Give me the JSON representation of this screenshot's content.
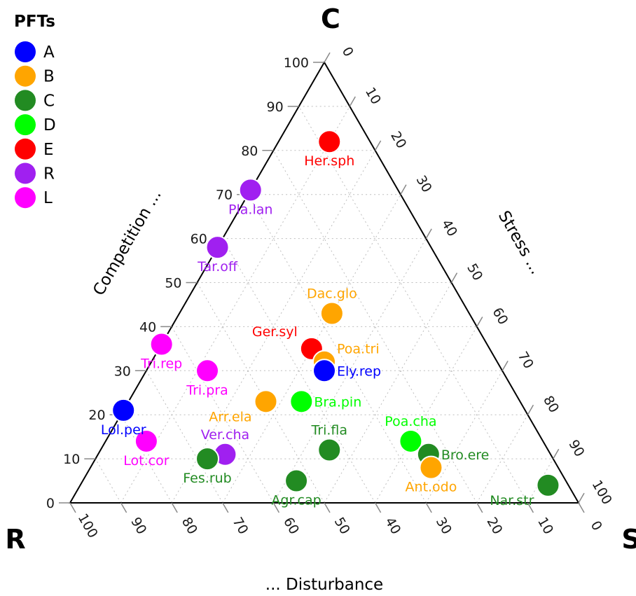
{
  "chart_data": {
    "type": "scatter",
    "subtype": "ternary",
    "corners": {
      "top": "C",
      "left": "R",
      "right": "S"
    },
    "axis_titles": {
      "competition": "Competition ...",
      "stress": "Stress ...",
      "disturbance": "... Disturbance"
    },
    "ticks": {
      "competition": [
        "0",
        "10",
        "20",
        "30",
        "40",
        "50",
        "60",
        "70",
        "80",
        "90",
        "100"
      ],
      "stress": [
        "0",
        "10",
        "20",
        "30",
        "40",
        "50",
        "60",
        "70",
        "80",
        "90",
        "100"
      ],
      "disturbance": [
        "100",
        "90",
        "80",
        "70",
        "60",
        "50",
        "40",
        "30",
        "20",
        "10",
        "0"
      ]
    },
    "grid": true,
    "legend": {
      "title": "PFTs",
      "placement": "top-left",
      "items": [
        {
          "name": "A",
          "color": "#0000ff"
        },
        {
          "name": "B",
          "color": "#ffa500"
        },
        {
          "name": "C",
          "color": "#228b22"
        },
        {
          "name": "D",
          "color": "#00ff00"
        },
        {
          "name": "E",
          "color": "#ff0000"
        },
        {
          "name": "R",
          "color": "#a020f0"
        },
        {
          "name": "L",
          "color": "#ff00ff"
        }
      ]
    },
    "points": [
      {
        "label": "Her.sph",
        "group": "E",
        "c": 82,
        "s": 10,
        "r": 8,
        "label_pos": "below"
      },
      {
        "label": "Pla.lan",
        "group": "R",
        "c": 71,
        "s": 0,
        "r": 29,
        "label_pos": "below"
      },
      {
        "label": "Tar.off",
        "group": "R",
        "c": 58,
        "s": 0,
        "r": 42,
        "label_pos": "below"
      },
      {
        "label": "Dac.glo",
        "group": "B",
        "c": 43,
        "s": 30,
        "r": 27,
        "label_pos": "above"
      },
      {
        "label": "Tri.rep",
        "group": "L",
        "c": 36,
        "s": 0,
        "r": 64,
        "label_pos": "below"
      },
      {
        "label": "Ger.syl",
        "group": "E",
        "c": 35,
        "s": 30,
        "r": 35,
        "label_pos": "upper-left"
      },
      {
        "label": "Poa.tri",
        "group": "B",
        "c": 32,
        "s": 34,
        "r": 34,
        "label_pos": "upper-right"
      },
      {
        "label": "Ely.rep",
        "group": "A",
        "c": 30,
        "s": 35,
        "r": 35,
        "label_pos": "right"
      },
      {
        "label": "Tri.pra",
        "group": "L",
        "c": 30,
        "s": 12,
        "r": 58,
        "label_pos": "below"
      },
      {
        "label": "Arr.ela",
        "group": "B",
        "c": 23,
        "s": 27,
        "r": 50,
        "label_pos": "lower-left"
      },
      {
        "label": "Bra.pin",
        "group": "D",
        "c": 23,
        "s": 34,
        "r": 43,
        "label_pos": "right"
      },
      {
        "label": "Lol.per",
        "group": "A",
        "c": 21,
        "s": 0,
        "r": 79,
        "label_pos": "below"
      },
      {
        "label": "Poa.cha",
        "group": "D",
        "c": 14,
        "s": 60,
        "r": 26,
        "label_pos": "above"
      },
      {
        "label": "Lot.cor",
        "group": "L",
        "c": 14,
        "s": 8,
        "r": 78,
        "label_pos": "below"
      },
      {
        "label": "Tri.fla",
        "group": "C",
        "c": 12,
        "s": 45,
        "r": 43,
        "label_pos": "above"
      },
      {
        "label": "Bro.ere",
        "group": "C",
        "c": 11,
        "s": 65,
        "r": 24,
        "label_pos": "right"
      },
      {
        "label": "Ver.cha",
        "group": "R",
        "c": 11,
        "s": 25,
        "r": 64,
        "label_pos": "above"
      },
      {
        "label": "Fes.rub",
        "group": "C",
        "c": 10,
        "s": 22,
        "r": 68,
        "label_pos": "below"
      },
      {
        "label": "Ant.odo",
        "group": "B",
        "c": 8,
        "s": 67,
        "r": 25,
        "label_pos": "below"
      },
      {
        "label": "Agr.cap",
        "group": "C",
        "c": 5,
        "s": 42,
        "r": 53,
        "label_pos": "below"
      },
      {
        "label": "Nar.str",
        "group": "C",
        "c": 4,
        "s": 92,
        "r": 4,
        "label_pos": "lower-left"
      }
    ]
  }
}
